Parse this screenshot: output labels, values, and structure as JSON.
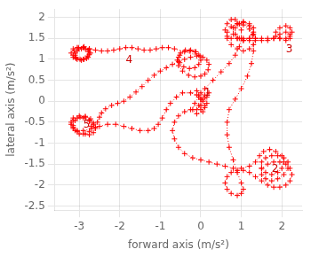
{
  "chart_data": {
    "type": "line",
    "xlabel": "forward axis (m/s²)",
    "ylabel": "lateral axis (m/s²)",
    "xlim": [
      -3.6,
      2.5
    ],
    "ylim": [
      -2.6,
      2.2
    ],
    "xticks": [
      -3,
      -2,
      -1,
      0,
      1,
      2
    ],
    "yticks": [
      -2.5,
      -2,
      -1.5,
      -1,
      -0.5,
      0,
      0.5,
      1,
      1.5,
      2
    ],
    "grid": true,
    "color": "#FF0000",
    "line_style": "dotted",
    "marker": "+",
    "annotations": [
      {
        "text": "1",
        "x": 0.08,
        "y": 0.08,
        "color": "#CC0000"
      },
      {
        "text": "2",
        "x": 1.75,
        "y": -1.75,
        "color": "#CC0000"
      },
      {
        "text": "3",
        "x": 2.1,
        "y": 1.1,
        "color": "#CC0000"
      },
      {
        "text": "4",
        "x": -1.85,
        "y": 0.85,
        "color": "#CC0000"
      },
      {
        "text": "5",
        "x": -2.9,
        "y": -0.7,
        "color": "#CC0000"
      }
    ],
    "x": [
      0.0,
      0.1,
      0.2,
      0.15,
      0.05,
      -0.05,
      0.0,
      0.1,
      0.15,
      0.1,
      0.0,
      -0.1,
      -0.05,
      0.05,
      0.1,
      0.05,
      -0.1,
      -0.2,
      -0.15,
      -0.05,
      0.1,
      0.3,
      0.5,
      0.7,
      0.85,
      0.95,
      1.0,
      1.0,
      0.95,
      0.85,
      0.75,
      0.65,
      0.6,
      0.65,
      0.75,
      0.9,
      1.05,
      1.2,
      1.35,
      1.5,
      1.65,
      1.8,
      1.95,
      2.1,
      2.2,
      2.25,
      2.2,
      2.1,
      1.95,
      1.85,
      1.85,
      1.95,
      2.1,
      2.2,
      2.2,
      2.1,
      1.95,
      1.8,
      1.65,
      1.5,
      1.35,
      1.2,
      1.05,
      0.95,
      0.85,
      0.85,
      0.95,
      1.05,
      1.2,
      1.3,
      1.3,
      1.2,
      1.05,
      0.9,
      0.8,
      0.8,
      0.9,
      1.05,
      1.2,
      1.3,
      1.35,
      1.3,
      1.2,
      1.05,
      0.9,
      0.75,
      0.65,
      0.65,
      0.75,
      0.9,
      1.05,
      1.2,
      1.28,
      1.3,
      1.25,
      1.15,
      1.0,
      0.85,
      0.7,
      0.65,
      0.65,
      0.7,
      0.8,
      0.9,
      1.0,
      1.05,
      1.0,
      0.9,
      0.75,
      0.65,
      0.6,
      0.65,
      0.75,
      0.9,
      1.05,
      1.2,
      1.35,
      1.5,
      1.65,
      1.8,
      1.95,
      2.1,
      2.2,
      2.25,
      2.2,
      2.1,
      1.95,
      1.8,
      1.65,
      1.5,
      1.5,
      1.6,
      1.75,
      1.9,
      2.05,
      2.15,
      2.15,
      2.05,
      1.9,
      1.75,
      1.6,
      1.5,
      1.5,
      1.6,
      1.75,
      1.9,
      2.0,
      2.05,
      2.0,
      1.85,
      1.7,
      1.55,
      1.45,
      1.35,
      1.2,
      1.0,
      0.8,
      0.6,
      0.4,
      0.2,
      0.0,
      -0.2,
      -0.4,
      -0.55,
      -0.65,
      -0.7,
      -0.65,
      -0.55,
      -0.4,
      -0.25,
      -0.1,
      0.0,
      0.0,
      -0.1,
      -0.25,
      -0.45,
      -0.6,
      -0.75,
      -0.85,
      -0.95,
      -1.05,
      -1.15,
      -1.3,
      -1.5,
      -1.7,
      -1.9,
      -2.1,
      -2.3,
      -2.5,
      -2.7,
      -2.9,
      -3.05,
      -3.15,
      -3.2,
      -3.15,
      -3.05,
      -2.9,
      -2.75,
      -2.65,
      -2.6,
      -2.65,
      -2.75,
      -2.9,
      -3.05,
      -3.15,
      -3.2,
      -3.15,
      -3.0,
      -2.85,
      -2.75,
      -2.7,
      -2.75,
      -2.85,
      -3.0,
      -3.1,
      -3.15,
      -3.1,
      -2.98,
      -2.85,
      -2.72,
      -2.65,
      -2.6,
      -2.55,
      -2.5,
      -2.45,
      -2.35,
      -2.2,
      -2.05,
      -1.9,
      -1.75,
      -1.6,
      -1.45,
      -1.3,
      -1.15,
      -1.0,
      -0.85,
      -0.7,
      -0.55,
      -0.4,
      -0.25,
      -0.1,
      0.05,
      0.15,
      0.2,
      0.18,
      0.1,
      0.0,
      -0.15,
      -0.3,
      -0.45,
      -0.55,
      -0.58,
      -0.52,
      -0.4,
      -0.28,
      -0.15,
      -0.05,
      0.0,
      -0.05,
      -0.15,
      -0.28,
      -0.42,
      -0.52,
      -0.55,
      -0.5,
      -0.38,
      -0.25,
      -0.12,
      -0.02,
      -0.65,
      -0.8,
      -0.95,
      -1.1,
      -1.25,
      -1.4,
      -1.55,
      -1.7,
      -1.85,
      -2.0,
      -2.15,
      -2.3,
      -2.45,
      -2.6,
      -2.75,
      -2.9,
      -3.05,
      -3.15,
      -3.2,
      -3.15,
      -3.05,
      -2.9,
      -2.78,
      -2.72,
      -2.75,
      -2.88,
      -3.02,
      -3.12,
      -3.15,
      -3.08,
      -2.95,
      -2.82,
      -2.75,
      -2.78,
      -2.9,
      -3.02,
      -3.1,
      -3.08,
      -2.98,
      -2.88,
      -2.8,
      -2.78,
      -2.85,
      -2.95,
      -3.05,
      -3.1,
      -3.08
    ],
    "values": [
      0.05,
      0.15,
      0.2,
      0.1,
      0.0,
      -0.1,
      -0.2,
      -0.15,
      -0.05,
      0.1,
      0.2,
      0.25,
      0.15,
      0.05,
      -0.1,
      -0.25,
      -0.3,
      -0.2,
      -0.05,
      0.1,
      0.3,
      0.5,
      0.7,
      0.9,
      1.1,
      1.3,
      1.5,
      1.7,
      1.85,
      1.95,
      1.95,
      1.85,
      1.7,
      1.55,
      1.5,
      1.5,
      1.5,
      1.5,
      1.5,
      1.5,
      1.5,
      1.5,
      1.5,
      1.5,
      1.55,
      1.65,
      1.75,
      1.8,
      1.75,
      1.65,
      1.55,
      1.5,
      1.45,
      1.5,
      1.6,
      1.65,
      1.6,
      1.5,
      1.45,
      1.45,
      1.45,
      1.45,
      1.45,
      1.5,
      1.6,
      1.75,
      1.85,
      1.9,
      1.85,
      1.75,
      1.6,
      1.5,
      1.45,
      1.5,
      1.6,
      1.75,
      1.85,
      1.88,
      1.8,
      1.65,
      1.5,
      1.35,
      1.25,
      1.2,
      1.25,
      1.35,
      1.5,
      1.65,
      1.78,
      1.85,
      1.82,
      1.72,
      1.58,
      1.2,
      0.9,
      0.6,
      0.3,
      0.05,
      -0.2,
      -0.5,
      -0.8,
      -1.1,
      -1.4,
      -1.7,
      -1.95,
      -2.1,
      -2.2,
      -2.25,
      -2.2,
      -2.1,
      -1.95,
      -1.8,
      -1.7,
      -1.65,
      -1.65,
      -1.7,
      -1.8,
      -1.9,
      -2.0,
      -2.05,
      -2.05,
      -2.0,
      -1.9,
      -1.75,
      -1.6,
      -1.5,
      -1.45,
      -1.45,
      -1.5,
      -1.6,
      -1.75,
      -1.85,
      -1.9,
      -1.85,
      -1.75,
      -1.6,
      -1.45,
      -1.35,
      -1.3,
      -1.3,
      -1.35,
      -1.45,
      -1.6,
      -1.7,
      -1.75,
      -1.7,
      -1.6,
      -1.45,
      -1.3,
      -1.2,
      -1.15,
      -1.2,
      -1.3,
      -1.45,
      -1.55,
      -1.6,
      -1.6,
      -1.55,
      -1.5,
      -1.45,
      -1.4,
      -1.35,
      -1.25,
      -1.1,
      -0.9,
      -0.7,
      -0.5,
      -0.35,
      -0.25,
      -0.2,
      -0.2,
      -0.1,
      0.05,
      0.15,
      0.2,
      0.2,
      0.1,
      -0.05,
      -0.2,
      -0.4,
      -0.55,
      -0.65,
      -0.7,
      -0.7,
      -0.65,
      -0.6,
      -0.55,
      -0.55,
      -0.6,
      -0.65,
      -0.7,
      -0.7,
      -0.65,
      -0.55,
      -0.45,
      -0.4,
      -0.4,
      -0.45,
      -0.55,
      -0.65,
      -0.75,
      -0.8,
      -0.78,
      -0.72,
      -0.62,
      -0.5,
      -0.4,
      -0.35,
      -0.38,
      -0.48,
      -0.6,
      -0.72,
      -0.78,
      -0.78,
      -0.7,
      -0.58,
      -0.46,
      -0.38,
      -0.36,
      -0.42,
      -0.52,
      -0.62,
      -0.5,
      -0.38,
      -0.28,
      -0.18,
      -0.1,
      -0.05,
      0.0,
      0.1,
      0.22,
      0.35,
      0.5,
      0.62,
      0.72,
      0.8,
      0.88,
      0.95,
      1.0,
      1.05,
      1.08,
      1.05,
      0.98,
      0.88,
      0.75,
      0.65,
      0.6,
      0.58,
      0.62,
      0.72,
      0.85,
      0.98,
      1.1,
      1.18,
      1.2,
      1.18,
      1.1,
      0.98,
      0.88,
      0.8,
      0.78,
      0.82,
      0.92,
      1.05,
      1.15,
      1.22,
      1.22,
      1.18,
      1.08,
      1.25,
      1.28,
      1.28,
      1.25,
      1.22,
      1.22,
      1.25,
      1.28,
      1.28,
      1.25,
      1.22,
      1.2,
      1.2,
      1.22,
      1.25,
      1.28,
      1.28,
      1.25,
      1.15,
      1.05,
      1.0,
      1.0,
      1.05,
      1.15,
      1.25,
      1.3,
      1.28,
      1.2,
      1.1,
      1.02,
      0.98,
      1.02,
      1.12,
      1.22,
      1.28,
      1.25,
      1.15,
      1.05,
      1.0,
      1.0,
      1.08,
      1.18,
      1.25,
      1.25,
      1.2,
      1.1,
      1.02
    ]
  }
}
